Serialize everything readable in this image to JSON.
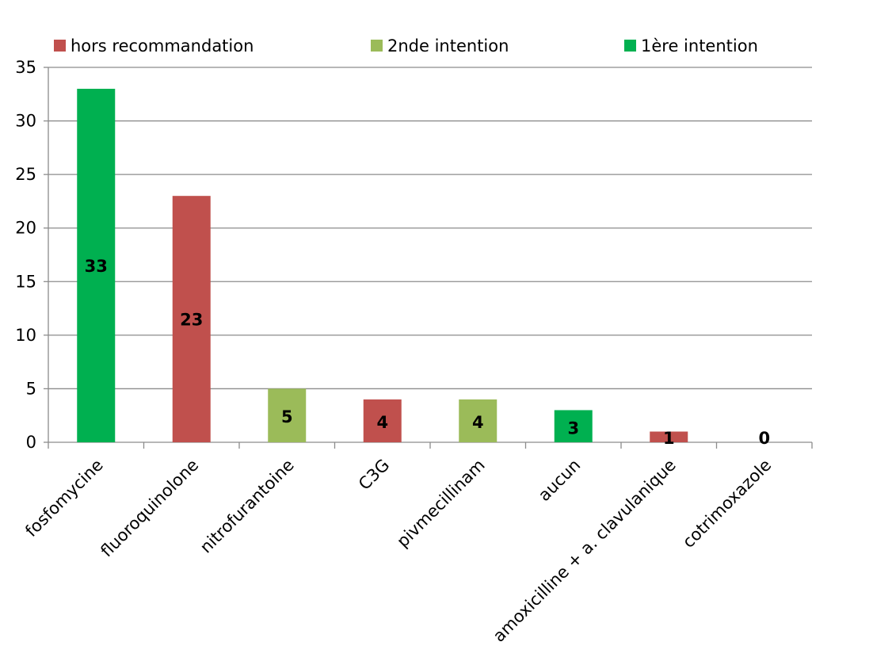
{
  "chart_data": {
    "type": "bar",
    "categories": [
      "fosfomycine",
      "fluoroquinolone",
      "nitrofurantoine",
      "C3G",
      "pivmecillinam",
      "aucun",
      "amoxicilline + a. clavulanique",
      "cotrimoxazole"
    ],
    "values": [
      33,
      23,
      5,
      4,
      4,
      3,
      1,
      0
    ],
    "data_labels": [
      "33",
      "23",
      "5",
      "4",
      "4",
      "3",
      "1",
      "0"
    ],
    "bar_group": [
      "1ère intention",
      "hors recommandation",
      "2nde intention",
      "hors recommandation",
      "2nde intention",
      "1ère intention",
      "hors recommandation",
      "2nde intention"
    ],
    "legend": [
      {
        "name": "hors recommandation",
        "color": "#C0504D"
      },
      {
        "name": "2nde intention",
        "color": "#9BBB59"
      },
      {
        "name": "1ère intention",
        "color": "#00B050"
      }
    ],
    "legend_position": "top",
    "yticks": [
      "0",
      "5",
      "10",
      "15",
      "20",
      "25",
      "30",
      "35"
    ],
    "ylim": [
      0,
      35
    ],
    "grid": true,
    "title": "",
    "xlabel": "",
    "ylabel": ""
  }
}
